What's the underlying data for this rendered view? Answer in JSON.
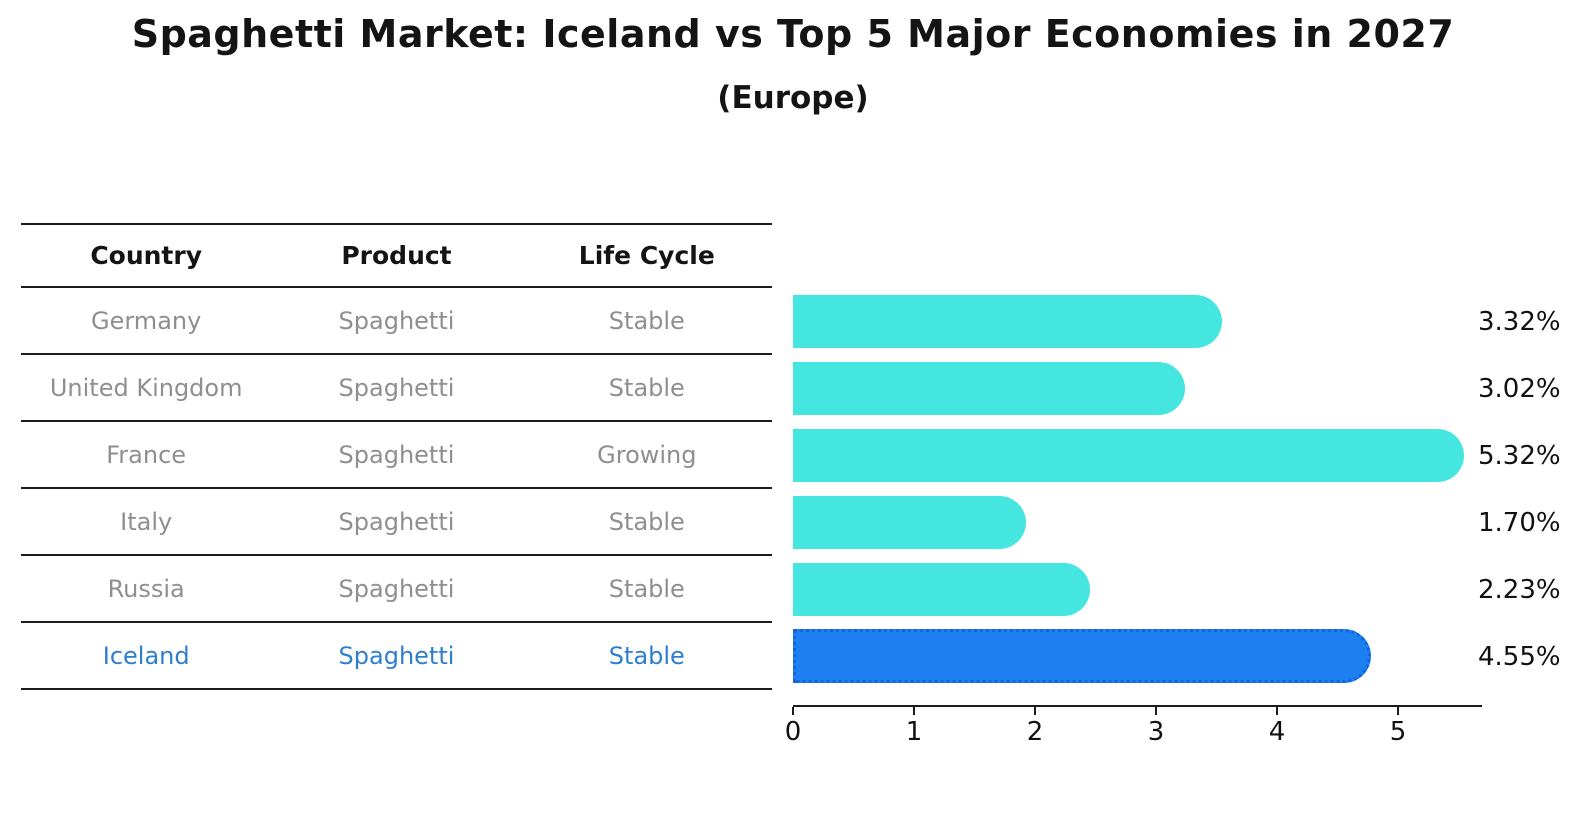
{
  "title": "Spaghetti Market: Iceland vs Top 5 Major Economies in 2027",
  "subtitle": "(Europe)",
  "table": {
    "headers": [
      "Country",
      "Product",
      "Life Cycle"
    ],
    "rows": [
      {
        "country": "Germany",
        "product": "Spaghetti",
        "life_cycle": "Stable",
        "highlight": false
      },
      {
        "country": "United Kingdom",
        "product": "Spaghetti",
        "life_cycle": "Stable",
        "highlight": false
      },
      {
        "country": "France",
        "product": "Spaghetti",
        "life_cycle": "Growing",
        "highlight": false
      },
      {
        "country": "Italy",
        "product": "Spaghetti",
        "life_cycle": "Stable",
        "highlight": false
      },
      {
        "country": "Russia",
        "product": "Spaghetti",
        "life_cycle": "Stable",
        "highlight": false
      },
      {
        "country": "Iceland",
        "product": "Spaghetti",
        "life_cycle": "Stable",
        "highlight": true
      }
    ]
  },
  "chart_data": {
    "type": "bar",
    "orientation": "horizontal",
    "categories": [
      "Germany",
      "United Kingdom",
      "France",
      "Italy",
      "Russia",
      "Iceland"
    ],
    "values": [
      3.32,
      3.02,
      5.32,
      1.7,
      2.23,
      4.55
    ],
    "labels": [
      "3.32%",
      "3.02%",
      "5.32%",
      "1.70%",
      "2.23%",
      "4.55%"
    ],
    "x_ticks": [
      0,
      1,
      2,
      3,
      4,
      5
    ],
    "xlim": [
      0,
      5.6
    ],
    "grid": false,
    "legend": "none",
    "highlight_index": 5,
    "bar_color": "#45e5e0",
    "highlight_color": "#1e80f0",
    "highlight_border_color": "#1565d8"
  },
  "colors": {
    "text_dark": "#141414",
    "text_gray": "#8f8f8f",
    "highlight_text": "#2e7ed0",
    "axis": "#1c1c1c"
  }
}
